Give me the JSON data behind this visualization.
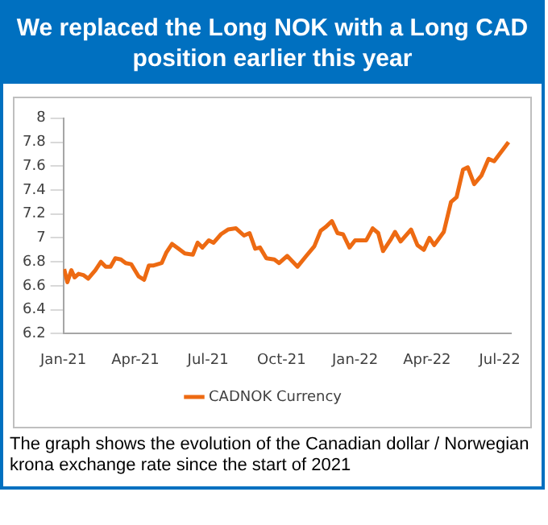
{
  "chart_data": {
    "type": "line",
    "title": "We replaced the Long NOK with a Long CAD position earlier this year",
    "annotations": [
      "The graph shows the evolution of the Canadian dollar / Norwegian krona exchange rate since the start of 2021"
    ],
    "series": [
      {
        "name": "CADNOK Currency",
        "color": "#ed6a12",
        "x": [
          "2021-01-02",
          "2021-01-06",
          "2021-01-11",
          "2021-01-15",
          "2021-01-20",
          "2021-01-26",
          "2021-02-01",
          "2021-02-10",
          "2021-02-17",
          "2021-02-23",
          "2021-03-01",
          "2021-03-07",
          "2021-03-14",
          "2021-03-20",
          "2021-03-27",
          "2021-04-05",
          "2021-04-12",
          "2021-04-18",
          "2021-04-24",
          "2021-05-04",
          "2021-05-10",
          "2021-05-17",
          "2021-05-25",
          "2021-06-02",
          "2021-06-12",
          "2021-06-18",
          "2021-06-24",
          "2021-07-02",
          "2021-07-08",
          "2021-07-17",
          "2021-07-26",
          "2021-08-05",
          "2021-08-15",
          "2021-08-22",
          "2021-08-29",
          "2021-09-04",
          "2021-09-12",
          "2021-09-22",
          "2021-09-28",
          "2021-10-08",
          "2021-10-21",
          "2021-11-01",
          "2021-11-11",
          "2021-11-19",
          "2021-11-25",
          "2021-12-03",
          "2021-12-10",
          "2021-12-17",
          "2021-12-25",
          "2022-01-01",
          "2022-01-15",
          "2022-01-23",
          "2022-01-30",
          "2022-02-05",
          "2022-02-14",
          "2022-02-20",
          "2022-02-27",
          "2022-03-12",
          "2022-03-20",
          "2022-03-28",
          "2022-04-04",
          "2022-04-10",
          "2022-04-22",
          "2022-05-01",
          "2022-05-08",
          "2022-05-16",
          "2022-05-22",
          "2022-05-30",
          "2022-06-08",
          "2022-06-17",
          "2022-06-24",
          "2022-07-12"
        ],
        "values": [
          6.74,
          6.63,
          6.73,
          6.67,
          6.7,
          6.69,
          6.66,
          6.73,
          6.8,
          6.76,
          6.76,
          6.83,
          6.82,
          6.79,
          6.78,
          6.68,
          6.65,
          6.77,
          6.77,
          6.79,
          6.88,
          6.95,
          6.91,
          6.87,
          6.86,
          6.96,
          6.92,
          6.98,
          6.96,
          7.03,
          7.07,
          7.08,
          7.02,
          7.04,
          6.91,
          6.92,
          6.83,
          6.82,
          6.79,
          6.85,
          6.76,
          6.85,
          6.93,
          7.06,
          7.09,
          7.14,
          7.04,
          7.03,
          6.92,
          6.98,
          6.98,
          7.08,
          7.04,
          6.89,
          6.98,
          7.05,
          6.97,
          7.07,
          6.94,
          6.9,
          7.0,
          6.94,
          7.05,
          7.3,
          7.34,
          7.57,
          7.59,
          7.45,
          7.52,
          7.66,
          7.64,
          7.8
        ]
      }
    ],
    "xlim": [
      "2021-01-01",
      "2022-07-15"
    ],
    "xticks": [
      {
        "value": "2021-01-01",
        "label": "Jan-21"
      },
      {
        "value": "2021-04-01",
        "label": "Apr-21"
      },
      {
        "value": "2021-07-01",
        "label": "Jul-21"
      },
      {
        "value": "2021-10-01",
        "label": "Oct-21"
      },
      {
        "value": "2022-01-01",
        "label": "Jan-22"
      },
      {
        "value": "2022-04-01",
        "label": "Apr-22"
      },
      {
        "value": "2022-07-01",
        "label": "Jul-22"
      }
    ],
    "ylim": [
      6.2,
      8
    ],
    "yticks": [
      6.2,
      6.4,
      6.6,
      6.8,
      7,
      7.2,
      7.4,
      7.6,
      7.8,
      8
    ],
    "grid": false,
    "legend": "bottom",
    "marker": "none",
    "line_style": "solid"
  }
}
